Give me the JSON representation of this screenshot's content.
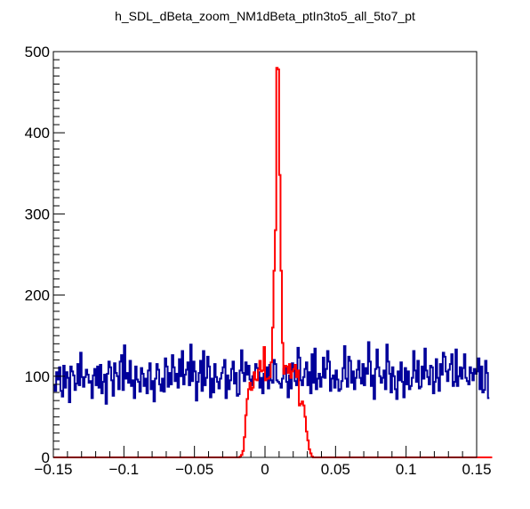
{
  "chart_data": {
    "type": "line",
    "title": "h_SDL_dBeta_zoom_NM1dBeta_ptIn3to5_all_5to7_pt",
    "xlabel": "",
    "ylabel": "",
    "xlim": [
      -0.15,
      0.15
    ],
    "ylim": [
      0,
      500
    ],
    "x_ticks": [
      -0.15,
      -0.1,
      -0.05,
      0,
      0.05,
      0.1,
      0.15
    ],
    "x_tick_labels": [
      "−0.15",
      "−0.1",
      "−0.05",
      "0",
      "0.05",
      "0.1",
      "0.15"
    ],
    "y_ticks": [
      0,
      100,
      200,
      300,
      400,
      500
    ],
    "y_tick_labels": [
      "0",
      "100",
      "200",
      "300",
      "400",
      "500"
    ],
    "grid": false,
    "bin_edges": [
      -0.15,
      0.15
    ],
    "n_bins": 300,
    "series": [
      {
        "color": "#00009a",
        "values": [
          89,
          82,
          105,
          96,
          111,
          82,
          75,
          113,
          86,
          105,
          98,
          68,
          112,
          106,
          101,
          83,
          91,
          115,
          89,
          129,
          99,
          87,
          99,
          108,
          102,
          92,
          94,
          73,
          101,
          109,
          89,
          112,
          86,
          114,
          79,
          93,
          102,
          66,
          103,
          118,
          111,
          95,
          76,
          116,
          104,
          100,
          84,
          118,
          126,
          83,
          138,
          97,
          104,
          92,
          119,
          88,
          95,
          73,
          112,
          96,
          93,
          81,
          110,
          103,
          88,
          97,
          79,
          107,
          116,
          84,
          94,
          69,
          97,
          115,
          108,
          90,
          82,
          97,
          81,
          122,
          112,
          87,
          104,
          90,
          126,
          111,
          94,
          103,
          86,
          121,
          100,
          131,
          90,
          102,
          108,
          117,
          89,
          139,
          94,
          118,
          106,
          70,
          93,
          104,
          119,
          82,
          131,
          89,
          98,
          124,
          112,
          74,
          97,
          80,
          115,
          99,
          93,
          85,
          97,
          104,
          111,
          120,
          73,
          101,
          84,
          95,
          109,
          118,
          91,
          104,
          76,
          78,
          107,
          132,
          104,
          94,
          117,
          102,
          113,
          96,
          89,
          100,
          104,
          115,
          110,
          105,
          86,
          98,
          79,
          103,
          97,
          111,
          85,
          114,
          95,
          92,
          120,
          115,
          95,
          93,
          91,
          86,
          97,
          109,
          113,
          93,
          74,
          101,
          85,
          116,
          109,
          94,
          89,
          135,
          123,
          95,
          89,
          99,
          109,
          117,
          89,
          105,
          79,
          127,
          92,
          134,
          84,
          97,
          103,
          87,
          99,
          123,
          98,
          109,
          131,
          118,
          82,
          97,
          101,
          86,
          107,
          96,
          82,
          84,
          94,
          110,
          137,
          97,
          87,
          124,
          119,
          92,
          106,
          84,
          98,
          108,
          119,
          98,
          91,
          115,
          89,
          110,
          103,
          142,
          118,
          88,
          101,
          72,
          109,
          133,
          111,
          100,
          92,
          98,
          107,
          84,
          139,
          118,
          103,
          80,
          111,
          100,
          84,
          72,
          106,
          95,
          117,
          93,
          74,
          110,
          90,
          106,
          84,
          88,
          98,
          131,
          107,
          93,
          119,
          85,
          87,
          112,
          97,
          134,
          107,
          99,
          90,
          113,
          111,
          79,
          93,
          121,
          98,
          82,
          115,
          102,
          129,
          124,
          106,
          94,
          108,
          115,
          127,
          88,
          93,
          133,
          88,
          100,
          111,
          97,
          110,
          127,
          98,
          94,
          90,
          111,
          104,
          95,
          109,
          103,
          106,
          122,
          84,
          112,
          80,
          83,
          119,
          104,
          73
        ]
      },
      {
        "color": "#ff0000",
        "values": [
          0,
          0,
          0,
          0,
          0,
          0,
          0,
          0,
          0,
          0,
          0,
          0,
          0,
          0,
          0,
          0,
          0,
          0,
          0,
          0,
          0,
          0,
          0,
          0,
          0,
          0,
          0,
          0,
          0,
          0,
          0,
          0,
          0,
          0,
          0,
          0,
          0,
          0,
          0,
          0,
          0,
          0,
          0,
          0,
          0,
          0,
          0,
          0,
          0,
          0,
          0,
          0,
          0,
          0,
          0,
          0,
          0,
          0,
          0,
          0,
          0,
          0,
          0,
          0,
          0,
          0,
          0,
          0,
          0,
          0,
          0,
          0,
          0,
          0,
          0,
          0,
          0,
          0,
          0,
          0,
          0,
          0,
          0,
          0,
          0,
          0,
          0,
          0,
          0,
          0,
          0,
          0,
          0,
          0,
          0,
          0,
          0,
          0,
          0,
          0,
          0,
          0,
          0,
          0,
          0,
          0,
          0,
          0,
          0,
          0,
          0,
          0,
          0,
          0,
          0,
          0,
          0,
          0,
          0,
          0,
          0,
          0,
          0,
          0,
          0,
          0,
          0,
          0,
          0,
          0,
          0,
          0,
          1,
          3,
          8,
          25,
          52,
          72,
          84,
          92,
          83,
          86,
          105,
          96,
          95,
          108,
          119,
          106,
          107,
          136,
          95,
          97,
          97,
          99,
          117,
          160,
          230,
          280,
          480,
          478,
          348,
          230,
          141,
          103,
          113,
          112,
          104,
          115,
          98,
          106,
          109,
          114,
          99,
          107,
          64,
          66,
          69,
          64,
          50,
          32,
          21,
          10,
          5,
          1,
          0,
          0,
          0,
          0,
          0,
          0,
          0,
          0,
          0,
          0,
          0,
          0,
          0,
          0,
          0,
          0,
          0,
          0,
          0,
          0,
          0,
          0,
          0,
          0,
          0,
          0,
          0,
          0,
          0,
          0,
          0,
          0,
          0,
          0,
          0,
          0,
          0,
          0,
          0,
          0,
          0,
          0,
          0,
          0,
          0,
          0,
          0,
          0,
          0,
          0,
          0,
          0,
          0,
          0,
          0,
          0,
          0,
          0,
          0,
          0,
          0,
          0,
          0,
          0,
          0,
          0,
          0,
          0,
          0,
          0,
          0,
          0,
          0,
          0,
          0,
          0,
          0,
          0,
          0,
          0,
          0,
          0,
          0,
          0,
          0,
          0,
          0,
          0,
          0,
          0,
          0,
          0,
          0,
          0,
          0,
          0,
          0,
          0,
          0,
          0,
          0,
          0,
          0,
          0,
          0,
          0,
          0,
          0,
          0,
          0,
          0,
          0,
          0,
          0,
          0,
          0,
          0,
          0,
          0,
          0,
          0,
          0,
          0,
          0,
          0,
          0,
          0
        ]
      }
    ]
  }
}
